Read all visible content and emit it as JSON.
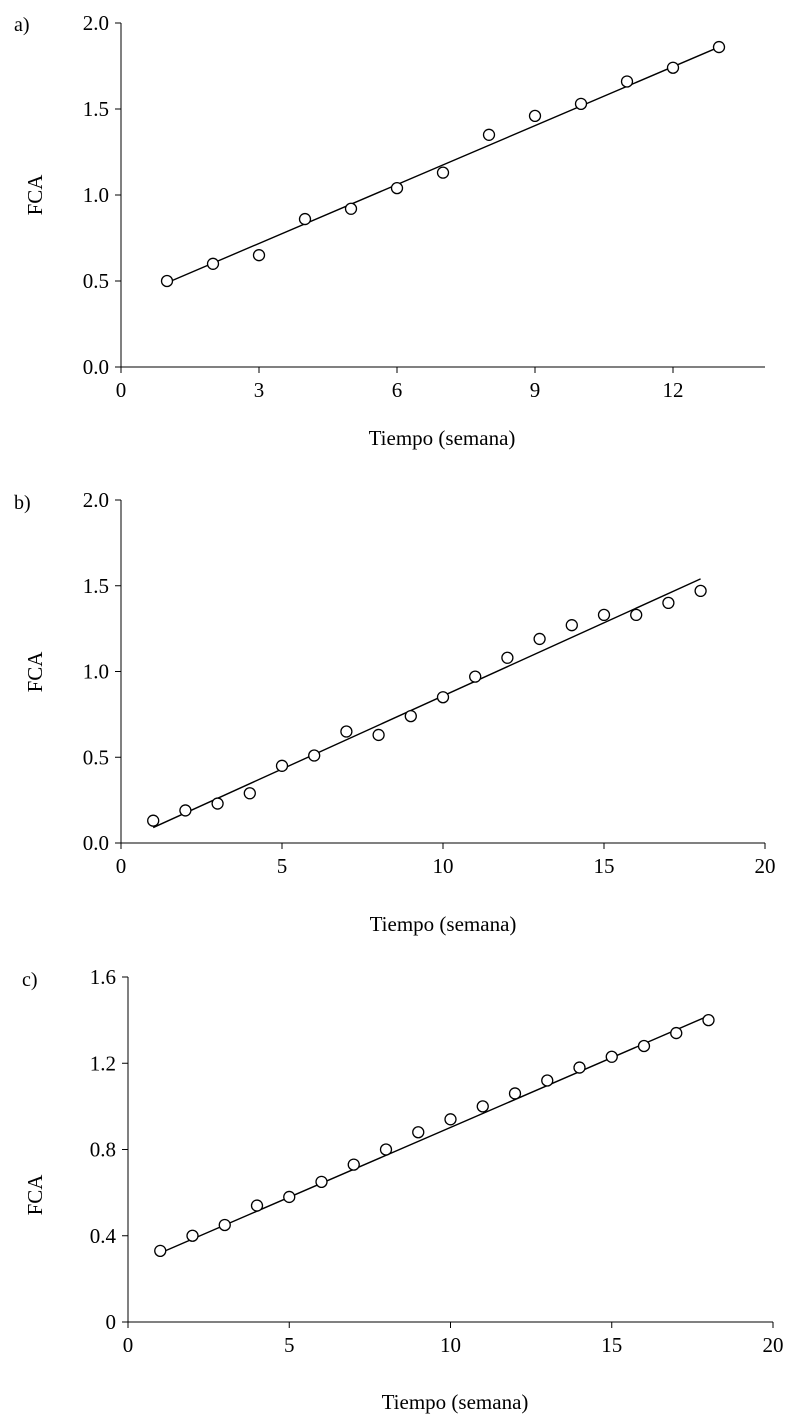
{
  "chart_data": [
    {
      "type": "scatter",
      "panel_label": "a)",
      "xlabel": "Tiempo (semana)",
      "ylabel": "FCA",
      "xlim": [
        0,
        14
      ],
      "ylim": [
        0,
        2.0
      ],
      "xticks": [
        "0",
        "3",
        "6",
        "9",
        "12"
      ],
      "xtick_values": [
        0,
        3,
        6,
        9,
        12
      ],
      "yticks": [
        "0.0",
        "0.5",
        "1.0",
        "1.5",
        "2.0"
      ],
      "ytick_values": [
        0,
        0.5,
        1.0,
        1.5,
        2.0
      ],
      "grid": false,
      "marker": "open-circle",
      "series": [
        {
          "x": [
            1,
            2,
            3,
            4,
            5,
            6,
            7,
            8,
            9,
            10,
            11,
            12,
            13
          ],
          "y": [
            0.5,
            0.6,
            0.65,
            0.86,
            0.92,
            1.04,
            1.13,
            1.35,
            1.46,
            1.53,
            1.66,
            1.74,
            1.86
          ]
        }
      ],
      "trendline": {
        "x": [
          1,
          13
        ],
        "y": [
          0.49,
          1.86
        ]
      }
    },
    {
      "type": "scatter",
      "panel_label": "b)",
      "xlabel": "Tiempo (semana)",
      "ylabel": "FCA",
      "xlim": [
        0,
        20
      ],
      "ylim": [
        0,
        2.0
      ],
      "xticks": [
        "0",
        "5",
        "10",
        "15",
        "20"
      ],
      "xtick_values": [
        0,
        5,
        10,
        15,
        20
      ],
      "yticks": [
        "0.0",
        "0.5",
        "1.0",
        "1.5",
        "2.0"
      ],
      "ytick_values": [
        0,
        0.5,
        1.0,
        1.5,
        2.0
      ],
      "grid": false,
      "marker": "open-circle",
      "series": [
        {
          "x": [
            1,
            2,
            3,
            4,
            5,
            6,
            7,
            8,
            9,
            10,
            11,
            12,
            13,
            14,
            15,
            16,
            17,
            18
          ],
          "y": [
            0.13,
            0.19,
            0.23,
            0.29,
            0.45,
            0.51,
            0.65,
            0.63,
            0.74,
            0.85,
            0.97,
            1.08,
            1.19,
            1.27,
            1.33,
            1.33,
            1.4,
            1.47
          ]
        }
      ],
      "trendline": {
        "x": [
          1,
          18
        ],
        "y": [
          0.09,
          1.54
        ]
      }
    },
    {
      "type": "scatter",
      "panel_label": "c)",
      "xlabel": "Tiempo (semana)",
      "ylabel": "FCA",
      "xlim": [
        0,
        20
      ],
      "ylim": [
        0,
        1.6
      ],
      "xticks": [
        "0",
        "5",
        "10",
        "15",
        "20"
      ],
      "xtick_values": [
        0,
        5,
        10,
        15,
        20
      ],
      "yticks": [
        "0",
        "0.4",
        "0.8",
        "1.2",
        "1.6"
      ],
      "ytick_values": [
        0,
        0.4,
        0.8,
        1.2,
        1.6
      ],
      "grid": false,
      "marker": "open-circle",
      "series": [
        {
          "x": [
            1,
            2,
            3,
            4,
            5,
            6,
            7,
            8,
            9,
            10,
            11,
            12,
            13,
            14,
            15,
            16,
            17,
            18
          ],
          "y": [
            0.33,
            0.4,
            0.45,
            0.54,
            0.58,
            0.65,
            0.73,
            0.8,
            0.88,
            0.94,
            1.0,
            1.06,
            1.12,
            1.18,
            1.23,
            1.28,
            1.34,
            1.4
          ]
        }
      ],
      "trendline": {
        "x": [
          1,
          18
        ],
        "y": [
          0.32,
          1.42
        ]
      }
    }
  ]
}
